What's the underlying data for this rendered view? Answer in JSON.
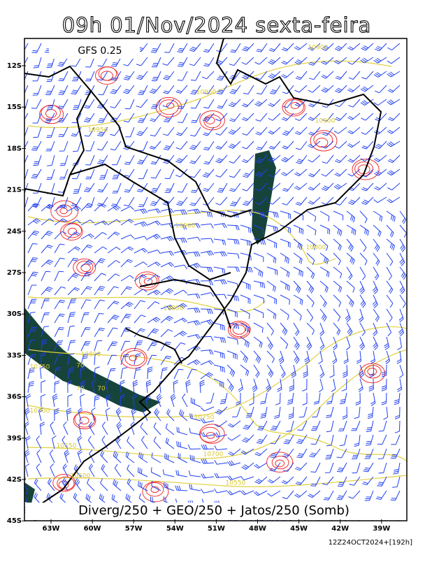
{
  "header": {
    "title": "09h 01/Nov/2024 sexta-feira"
  },
  "map": {
    "model_label": "GFS 0.25",
    "lat_ticks": [
      "12S",
      "15S",
      "18S",
      "21S",
      "24S",
      "27S",
      "30S",
      "33S",
      "36S",
      "39S",
      "42S",
      "45S"
    ],
    "lon_ticks": [
      "63W",
      "60W",
      "57W",
      "54W",
      "51W",
      "48W",
      "45W",
      "42W",
      "39W"
    ],
    "contour_labels": [
      "10900",
      "10950",
      "10950",
      "10900",
      "10900",
      "10800",
      "10850",
      "10800",
      "10750",
      "10700",
      "10750",
      "10700",
      "10650",
      "10600",
      "10550",
      "70",
      "70",
      "70"
    ],
    "legend_text": "Diverg/250 + GEO/250 + Jatos/250 (Somb)"
  },
  "footer": {
    "timestamp": "12Z24OCT2024+[192h]"
  }
}
